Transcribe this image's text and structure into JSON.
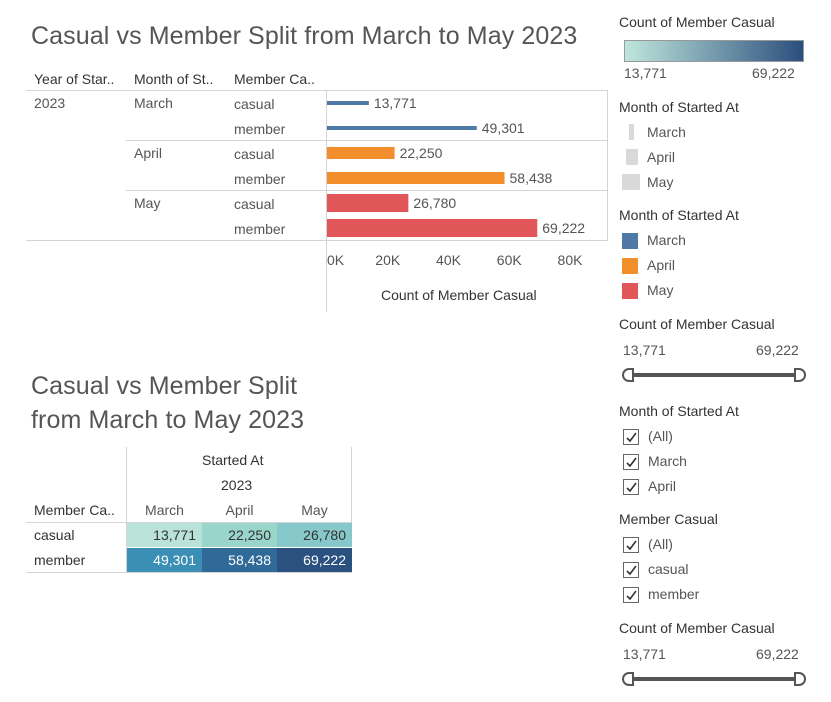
{
  "top": {
    "title": "Casual vs Member Split from March to May 2023",
    "headers": {
      "year": "Year of Star..",
      "month": "Month of St..",
      "member": "Member Ca.."
    },
    "year": "2023"
  },
  "chart_data": [
    {
      "type": "bar",
      "orientation": "horizontal",
      "categories": [
        "March casual",
        "March member",
        "April casual",
        "April member",
        "May casual",
        "May member"
      ],
      "rows": [
        {
          "month": "March",
          "member": "casual",
          "value": 13771,
          "label": "13,771",
          "color": "#4e79a7"
        },
        {
          "month": "March",
          "member": "member",
          "value": 49301,
          "label": "49,301",
          "color": "#4e79a7"
        },
        {
          "month": "April",
          "member": "casual",
          "value": 22250,
          "label": "22,250",
          "color": "#f28e2b"
        },
        {
          "month": "April",
          "member": "member",
          "value": 58438,
          "label": "58,438",
          "color": "#f28e2b"
        },
        {
          "month": "May",
          "member": "casual",
          "value": 26780,
          "label": "26,780",
          "color": "#e15759"
        },
        {
          "month": "May",
          "member": "member",
          "value": 69222,
          "label": "69,222",
          "color": "#e15759"
        }
      ],
      "xlim": [
        0,
        90000
      ],
      "ticks": [
        {
          "value": 0,
          "label": "0K"
        },
        {
          "value": 20000,
          "label": "20K"
        },
        {
          "value": 40000,
          "label": "40K"
        },
        {
          "value": 60000,
          "label": "60K"
        },
        {
          "value": 80000,
          "label": "80K"
        }
      ],
      "xlabel": "Count of Member Casual"
    },
    {
      "type": "heatmap",
      "title": "Casual vs Member Split from March to May 2023",
      "column_header": "Started At",
      "column_subheader": "2023",
      "row_header": "Member Ca..",
      "columns": [
        "March",
        "April",
        "May"
      ],
      "rows": [
        "casual",
        "member"
      ],
      "values": [
        [
          13771,
          22250,
          26780
        ],
        [
          49301,
          58438,
          69222
        ]
      ],
      "labels": [
        [
          "13,771",
          "22,250",
          "26,780"
        ],
        [
          "49,301",
          "58,438",
          "69,222"
        ]
      ],
      "colors": [
        [
          "#b9e3d8",
          "#9ad5cc",
          "#87c8cb"
        ],
        [
          "#3b8fb4",
          "#2f6a98",
          "#2a5180"
        ]
      ],
      "text_colors": [
        [
          "#333333",
          "#333333",
          "#333333"
        ],
        [
          "#ffffff",
          "#ffffff",
          "#ffffff"
        ]
      ]
    }
  ],
  "legends": {
    "color_gradient": {
      "title": "Count of Member Casual",
      "min": "13,771",
      "max": "69,222",
      "start_color": "#bfe6dc",
      "end_color": "#2b4f7d"
    },
    "size": {
      "title": "Month of Started At",
      "items": [
        "March",
        "April",
        "May"
      ]
    },
    "color": {
      "title": "Month of Started At",
      "items": [
        {
          "label": "March",
          "color": "#4e79a7"
        },
        {
          "label": "April",
          "color": "#f28e2b"
        },
        {
          "label": "May",
          "color": "#e15759"
        }
      ]
    },
    "slider1": {
      "title": "Count of Member Casual",
      "min": "13,771",
      "max": "69,222"
    },
    "month_filter": {
      "title": "Month of Started At",
      "items": [
        "(All)",
        "March",
        "April"
      ]
    },
    "member_filter": {
      "title": "Member Casual",
      "items": [
        "(All)",
        "casual",
        "member"
      ]
    },
    "slider2": {
      "title": "Count of Member Casual",
      "min": "13,771",
      "max": "69,222"
    }
  }
}
